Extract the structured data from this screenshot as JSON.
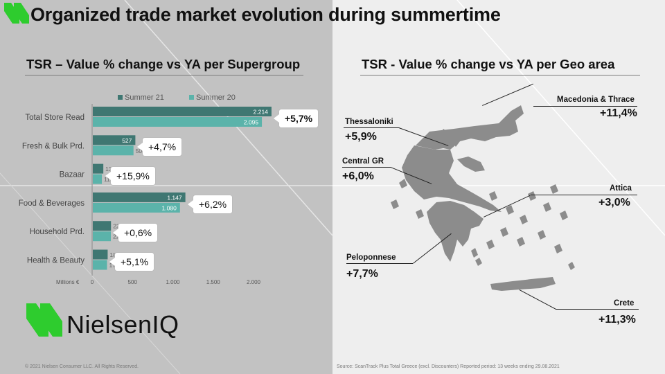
{
  "title": "Organized trade market evolution during summertime",
  "left_subtitle": "TSR – Value % change vs YA per Supergroup",
  "right_subtitle": "TSR - Value % change vs YA per Geo area",
  "colors": {
    "summer21": "#3f7772",
    "summer20": "#5bb3aa",
    "brand_green": "#2ecc2e"
  },
  "chart_data": {
    "type": "bar",
    "orientation": "horizontal",
    "categories": [
      "Total Store Read",
      "Fresh & Bulk Prd.",
      "Bazaar",
      "Food & Beverages",
      "Household Prd.",
      "Health & Beauty"
    ],
    "series": [
      {
        "name": "Summer 21",
        "values": [
          2214,
          527,
          130,
          1147,
          225,
          184
        ],
        "labels": [
          "2.214",
          "527",
          "130",
          "1.147",
          "225",
          "184"
        ]
      },
      {
        "name": "Summer 20",
        "values": [
          2095,
          504,
          112,
          1080,
          223,
          176
        ],
        "labels": [
          "2.095",
          "504",
          "112",
          "1.080",
          "223",
          "176"
        ]
      }
    ],
    "changes": [
      "+5,7%",
      "+4,7%",
      "+15,9%",
      "+6,2%",
      "+0,6%",
      "+5,1%"
    ],
    "xlabel": "Millions €",
    "xticks": [
      "0",
      "500",
      "1.000",
      "1.500",
      "2.000"
    ],
    "xtick_values": [
      0,
      500,
      1000,
      1500,
      2000
    ],
    "xlim": [
      0,
      2200
    ],
    "legend_position": "top"
  },
  "geo": [
    {
      "name": "Macedonia & Thrace",
      "value": "+11,4%"
    },
    {
      "name": "Thessaloniki",
      "value": "+5,9%"
    },
    {
      "name": "Central GR",
      "value": "+6,0%"
    },
    {
      "name": "Attica",
      "value": "+3,0%"
    },
    {
      "name": "Peloponnese",
      "value": "+7,7%"
    },
    {
      "name": "Crete",
      "value": "+11,3%"
    }
  ],
  "brand": "NielsenIQ",
  "footer_left": "© 2021 Nielsen Consumer LLC. All Rights Reserved.",
  "footer_right": "Source: ScanTrack Plus  Total Greece (excl. Discounters) Reported period: 13 weeks ending 29.08.2021"
}
